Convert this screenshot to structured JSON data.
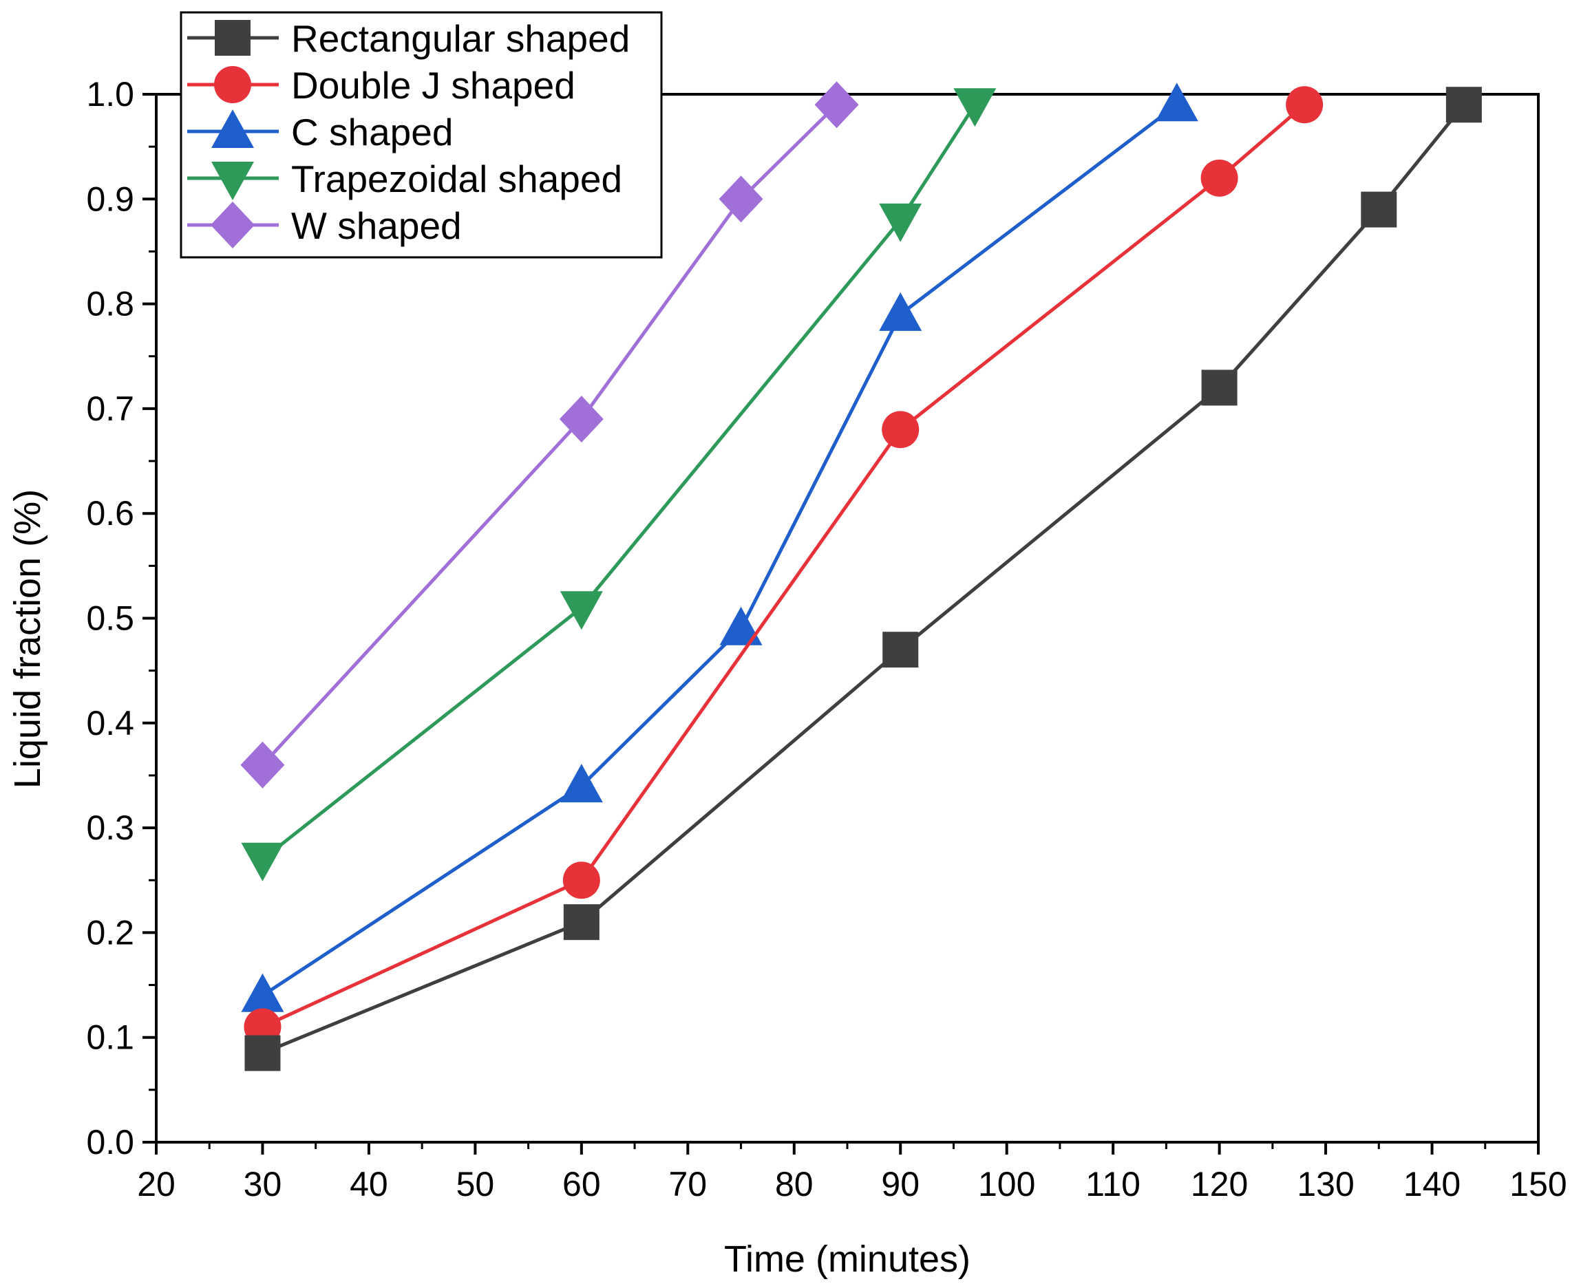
{
  "chart_data": {
    "type": "line",
    "xlabel": "Time (minutes)",
    "ylabel": "Liquid fraction (%)",
    "xlim": [
      20,
      150
    ],
    "ylim": [
      0.0,
      1.0
    ],
    "xticks": [
      "20",
      "30",
      "40",
      "50",
      "60",
      "70",
      "80",
      "90",
      "100",
      "110",
      "120",
      "130",
      "140",
      "150"
    ],
    "yticks": [
      "0.0",
      "0.1",
      "0.2",
      "0.3",
      "0.4",
      "0.5",
      "0.6",
      "0.7",
      "0.8",
      "0.9",
      "1.0"
    ],
    "grid": false,
    "legend_position": "top-left",
    "series": [
      {
        "name": "Rectangular shaped",
        "marker": "square",
        "color": "#3f3f3f",
        "x": [
          30,
          60,
          90,
          120,
          135,
          143
        ],
        "y": [
          0.085,
          0.21,
          0.47,
          0.72,
          0.89,
          0.99
        ]
      },
      {
        "name": "Double J shaped",
        "marker": "circle",
        "color": "#e8323a",
        "x": [
          30,
          60,
          90,
          120,
          128
        ],
        "y": [
          0.11,
          0.25,
          0.68,
          0.92,
          0.99
        ]
      },
      {
        "name": "C shaped",
        "marker": "triangle-up",
        "color": "#1f5fcc",
        "x": [
          30,
          60,
          75,
          90,
          116
        ],
        "y": [
          0.14,
          0.34,
          0.49,
          0.79,
          0.99
        ]
      },
      {
        "name": "Trapezoidal shaped",
        "marker": "triangle-down",
        "color": "#2e9a5a",
        "x": [
          30,
          60,
          90,
          97
        ],
        "y": [
          0.27,
          0.51,
          0.88,
          0.99
        ]
      },
      {
        "name": "W shaped",
        "marker": "diamond",
        "color": "#a070d8",
        "x": [
          30,
          60,
          75,
          84
        ],
        "y": [
          0.36,
          0.69,
          0.9,
          0.99
        ]
      }
    ]
  }
}
